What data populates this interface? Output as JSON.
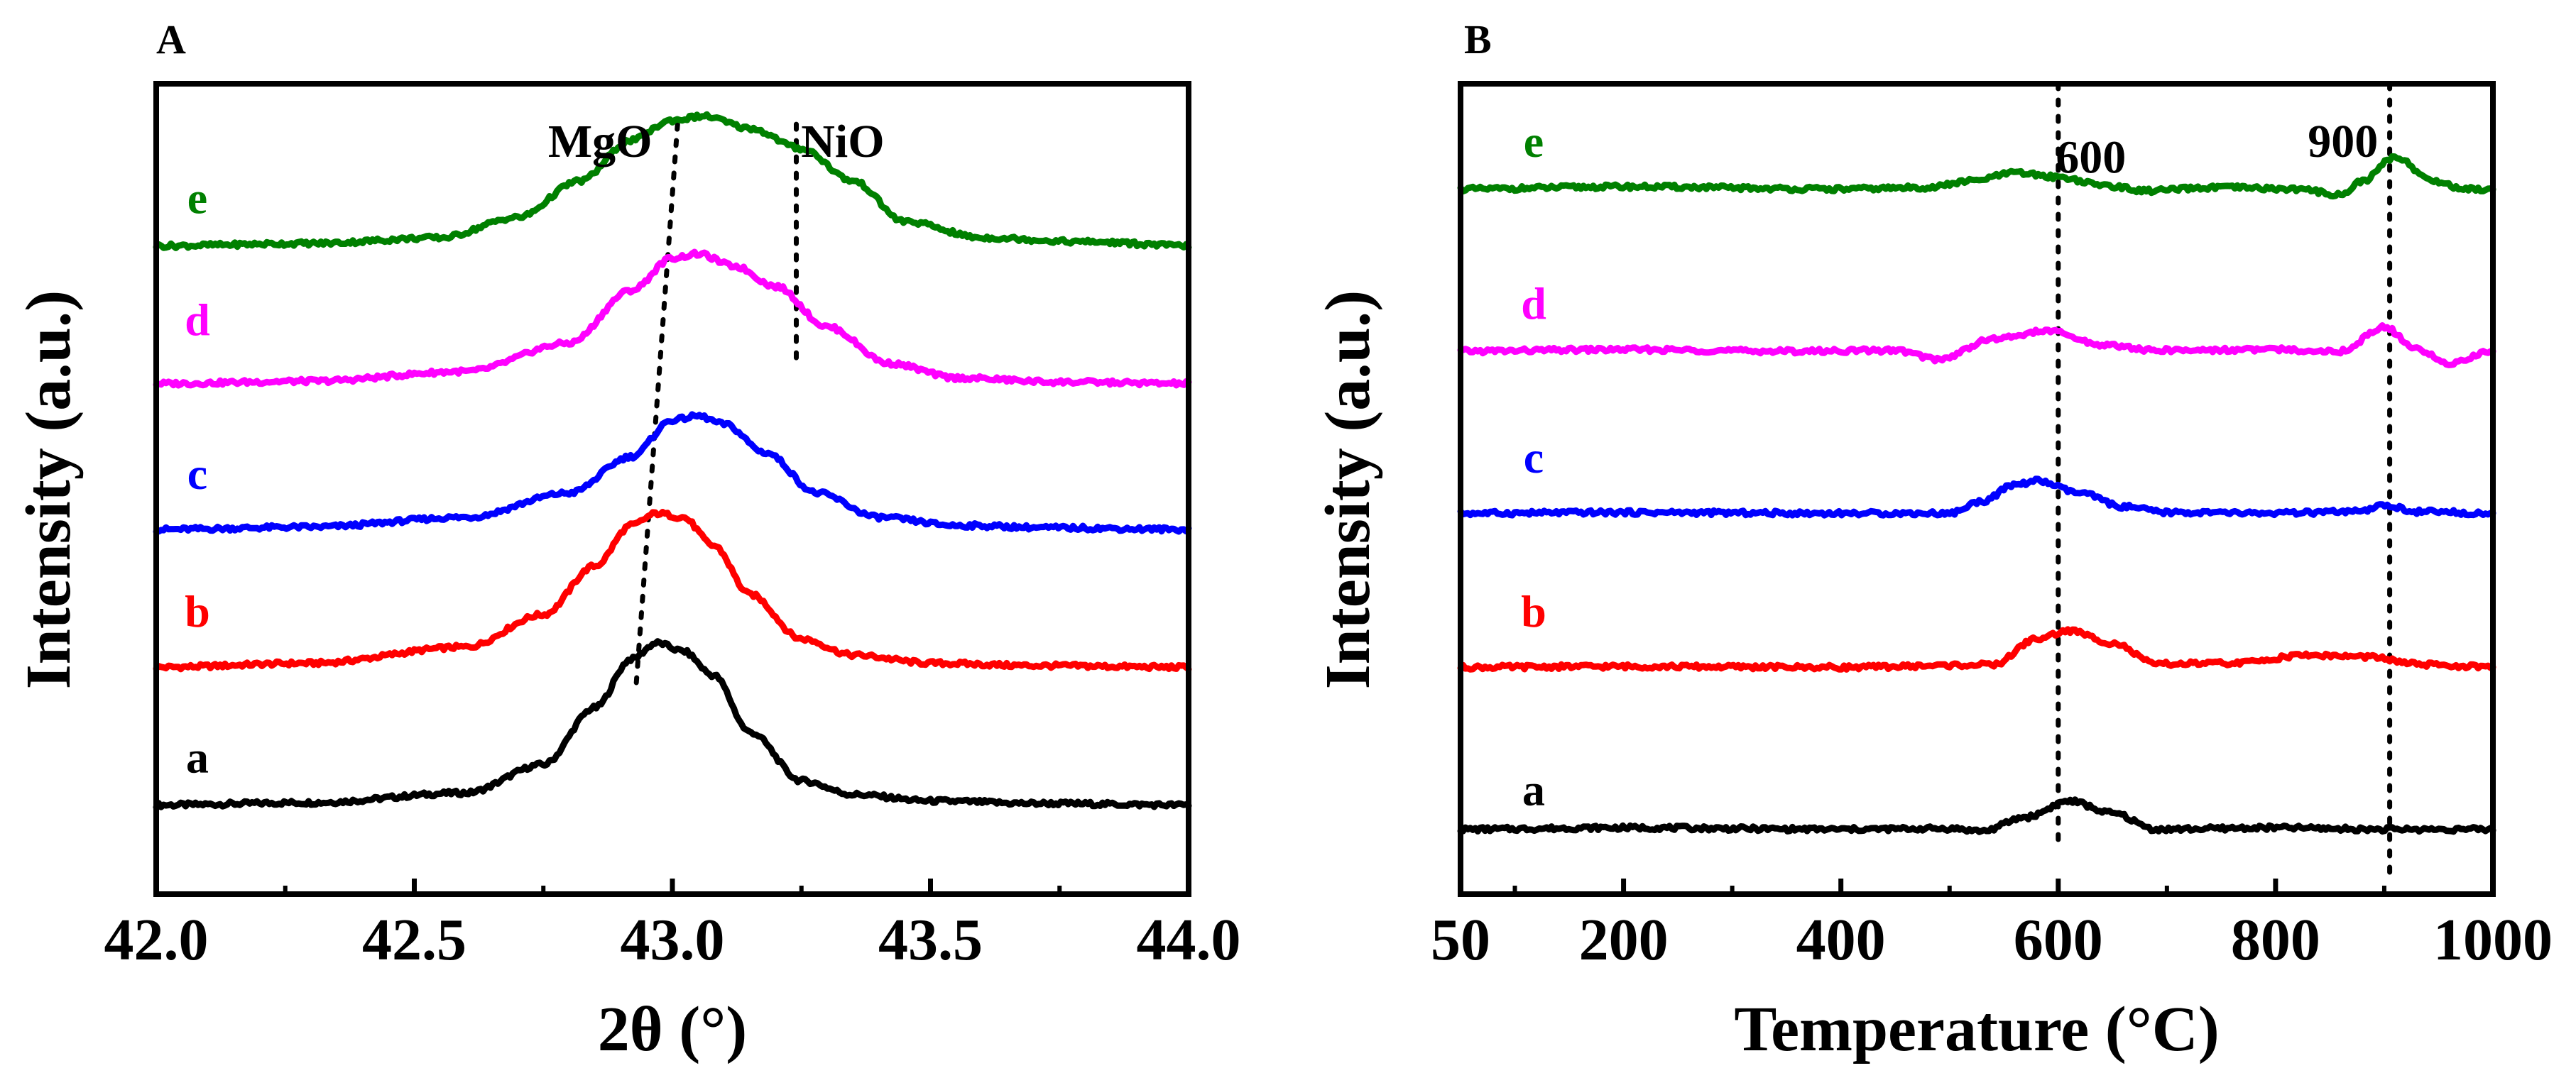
{
  "colors": {
    "a": "#000000",
    "b": "#ff0000",
    "c": "#0000ff",
    "d": "#ff00ff",
    "e": "#008000"
  },
  "chart_data": [
    {
      "panel": "A",
      "type": "line",
      "xlabel": "2θ (°)",
      "ylabel": "Intensity (a.u.)",
      "xlim": [
        42.0,
        44.0
      ],
      "ylim": [
        0,
        100
      ],
      "xticks": [
        "42.0",
        "42.5",
        "43.0",
        "43.5",
        "44.0"
      ],
      "annotations": [
        {
          "text": "MgO",
          "x": 42.86,
          "y": 91
        },
        {
          "text": "NiO",
          "x": 43.33,
          "y": 91
        }
      ],
      "reference_lines": [
        {
          "label": "MgO",
          "points": [
            [
              43.01,
              95
            ],
            [
              42.93,
              26
            ]
          ]
        },
        {
          "label": "NiO",
          "points": [
            [
              43.24,
              95
            ],
            [
              43.24,
              65
            ]
          ]
        }
      ],
      "series": [
        {
          "name": "a",
          "peak_x": 42.97,
          "peak_height": 20,
          "baseline": 11,
          "x": [
            42.0,
            42.3,
            42.6,
            42.75,
            42.85,
            42.92,
            42.97,
            43.02,
            43.08,
            43.15,
            43.25,
            43.35,
            43.5,
            43.7,
            44.0
          ],
          "y": [
            11.0,
            11.3,
            12.5,
            16.0,
            23.0,
            29.0,
            31.0,
            30.0,
            27.0,
            20.0,
            14.0,
            12.3,
            11.5,
            11.2,
            11.0
          ]
        },
        {
          "name": "b",
          "peak_x": 43.0,
          "peak_height": 19,
          "baseline": 28,
          "x": [
            42.0,
            42.3,
            42.6,
            42.75,
            42.85,
            42.92,
            42.97,
            43.02,
            43.08,
            43.15,
            43.25,
            43.35,
            43.5,
            43.7,
            44.0
          ],
          "y": [
            28.0,
            28.5,
            30.5,
            34.5,
            40.5,
            45.5,
            47.0,
            46.5,
            43.0,
            37.0,
            31.5,
            29.5,
            28.5,
            28.2,
            28.0
          ]
        },
        {
          "name": "c",
          "peak_x": 43.05,
          "peak_height": 14,
          "baseline": 45,
          "x": [
            42.0,
            42.3,
            42.6,
            42.8,
            42.92,
            43.0,
            43.05,
            43.1,
            43.18,
            43.28,
            43.4,
            43.55,
            43.75,
            44.0
          ],
          "y": [
            45.0,
            45.3,
            46.5,
            49.5,
            54.0,
            58.5,
            59.0,
            58.0,
            54.5,
            49.5,
            46.5,
            45.5,
            45.2,
            45.0
          ]
        },
        {
          "name": "d",
          "peak_x": 43.05,
          "peak_height": 16,
          "baseline": 63,
          "x": [
            42.0,
            42.3,
            42.6,
            42.8,
            42.92,
            43.0,
            43.05,
            43.12,
            43.2,
            43.3,
            43.42,
            43.55,
            43.75,
            44.0
          ],
          "y": [
            63.0,
            63.3,
            64.5,
            68.0,
            74.5,
            78.5,
            79.0,
            77.5,
            75.0,
            70.0,
            65.5,
            63.7,
            63.2,
            63.0
          ]
        },
        {
          "name": "e",
          "peak_x": 43.05,
          "peak_height": 16,
          "baseline": 80,
          "x": [
            42.0,
            42.3,
            42.55,
            42.7,
            42.82,
            42.92,
            43.0,
            43.06,
            43.15,
            43.25,
            43.35,
            43.45,
            43.6,
            43.8,
            44.0
          ],
          "y": [
            80.0,
            80.3,
            81.0,
            83.5,
            88.0,
            93.0,
            95.5,
            96.0,
            94.5,
            92.0,
            88.0,
            83.0,
            81.0,
            80.5,
            80.0
          ]
        }
      ]
    },
    {
      "panel": "B",
      "type": "line",
      "xlabel": "Temperature (°C)",
      "ylabel": "Intensity (a.u.)",
      "xlim": [
        50,
        1000
      ],
      "ylim": [
        0,
        100
      ],
      "xticks": [
        "50",
        "200",
        "400",
        "600",
        "800",
        "1000"
      ],
      "xtick_values": [
        50,
        200,
        400,
        600,
        800,
        1000
      ],
      "annotations": [
        {
          "text": "600",
          "x": 630,
          "y": 89
        },
        {
          "text": "900",
          "x": 862,
          "y": 91
        }
      ],
      "reference_lines": [
        {
          "label": "600",
          "points": [
            [
              600,
              100
            ],
            [
              600,
              6
            ]
          ]
        },
        {
          "label": "900",
          "points": [
            [
              905,
              100
            ],
            [
              905,
              2
            ]
          ]
        }
      ],
      "series": [
        {
          "name": "a",
          "baseline": 8,
          "x": [
            50,
            200,
            400,
            500,
            530,
            570,
            610,
            650,
            690,
            800,
            900,
            1000
          ],
          "y": [
            8.0,
            8.2,
            8.0,
            8.1,
            7.8,
            9.5,
            11.5,
            10.0,
            8.0,
            8.2,
            8.0,
            8.0
          ]
        },
        {
          "name": "b",
          "baseline": 28,
          "x": [
            50,
            200,
            400,
            540,
            580,
            610,
            650,
            690,
            760,
            830,
            880,
            940,
            1000
          ],
          "y": [
            28.0,
            28.1,
            28.0,
            28.3,
            31.5,
            32.5,
            31.0,
            28.4,
            28.5,
            29.5,
            29.3,
            28.3,
            28.0
          ]
        },
        {
          "name": "c",
          "baseline": 47,
          "x": [
            50,
            200,
            400,
            500,
            530,
            560,
            580,
            620,
            660,
            700,
            800,
            880,
            900,
            930,
            1000
          ],
          "y": [
            47.0,
            47.1,
            47.0,
            47.0,
            48.5,
            50.5,
            51.0,
            49.5,
            47.8,
            47.1,
            47.0,
            47.2,
            48.0,
            47.2,
            47.0
          ]
        },
        {
          "name": "d",
          "baseline": 67,
          "x": [
            50,
            200,
            350,
            450,
            490,
            540,
            590,
            640,
            690,
            800,
            860,
            900,
            930,
            960,
            1000
          ],
          "y": [
            67.0,
            67.2,
            67.0,
            67.1,
            66.0,
            68.5,
            69.5,
            67.8,
            67.1,
            67.2,
            67.0,
            70.0,
            67.2,
            65.5,
            67.0
          ]
        },
        {
          "name": "e",
          "baseline": 87,
          "x": [
            50,
            200,
            400,
            480,
            520,
            560,
            600,
            640,
            680,
            750,
            820,
            860,
            880,
            910,
            945,
            975,
            1000
          ],
          "y": [
            87.0,
            87.3,
            87.0,
            87.2,
            88.0,
            89.0,
            88.5,
            87.5,
            86.8,
            87.2,
            87.0,
            86.3,
            88.0,
            91.0,
            88.0,
            87.0,
            87.0
          ]
        }
      ]
    }
  ]
}
